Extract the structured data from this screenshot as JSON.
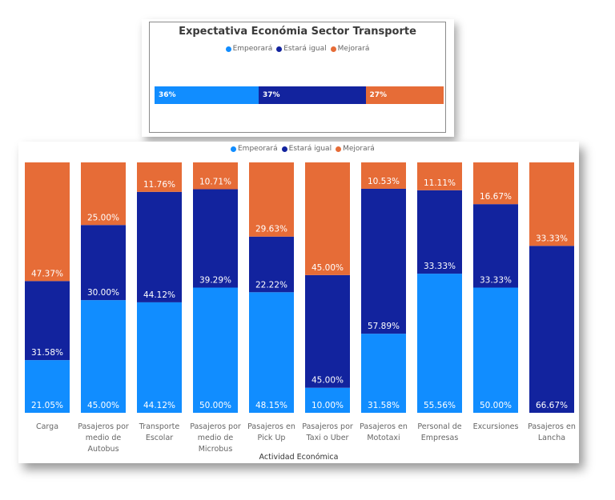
{
  "colors": {
    "empeorara": "#118DFF",
    "estara_igual": "#12239E",
    "mejorara": "#E66C37"
  },
  "chart_data": [
    {
      "type": "bar",
      "orientation": "horizontal",
      "stacked": "100%",
      "title": "Expectativa Económia Sector Transporte",
      "legend": [
        "Empeorará",
        "Estará igual",
        "Mejorará"
      ],
      "legend_position": "top-center",
      "series": [
        {
          "name": "Empeorará",
          "values": [
            36
          ],
          "label": "36%"
        },
        {
          "name": "Estará igual",
          "values": [
            37
          ],
          "label": "37%"
        },
        {
          "name": "Mejorará",
          "values": [
            27
          ],
          "label": "27%"
        }
      ]
    },
    {
      "type": "bar",
      "orientation": "vertical",
      "stacked": "100%",
      "title": "",
      "xlabel": "Actividad Económica",
      "ylabel": "",
      "ylim": [
        0,
        100
      ],
      "grid": false,
      "legend": [
        "Empeorará",
        "Estará igual",
        "Mejorará"
      ],
      "legend_position": "top-center",
      "categories": [
        [
          "Carga"
        ],
        [
          "Pasajeros por",
          "medio de",
          "Autobus"
        ],
        [
          "Transporte",
          "Escolar"
        ],
        [
          "Pasajeros por",
          "medio de",
          "Microbus"
        ],
        [
          "Pasajeros en",
          "Pick Up"
        ],
        [
          "Pasajeros por",
          "Taxi o Uber"
        ],
        [
          "Pasajeros en",
          "Mototaxi"
        ],
        [
          "Personal de",
          "Empresas"
        ],
        [
          "Excursiones"
        ],
        [
          "Pasajeros en",
          "Lancha"
        ]
      ],
      "series": [
        {
          "name": "Empeorará",
          "values": [
            21.05,
            45.0,
            44.12,
            50.0,
            48.15,
            10.0,
            31.58,
            55.56,
            50.0,
            0
          ]
        },
        {
          "name": "Estará igual",
          "values": [
            31.58,
            30.0,
            44.12,
            39.29,
            22.22,
            45.0,
            57.89,
            33.33,
            33.33,
            66.67
          ]
        },
        {
          "name": "Mejorará",
          "values": [
            47.37,
            25.0,
            11.76,
            10.71,
            29.63,
            45.0,
            10.53,
            11.11,
            16.67,
            33.33
          ]
        }
      ]
    }
  ]
}
